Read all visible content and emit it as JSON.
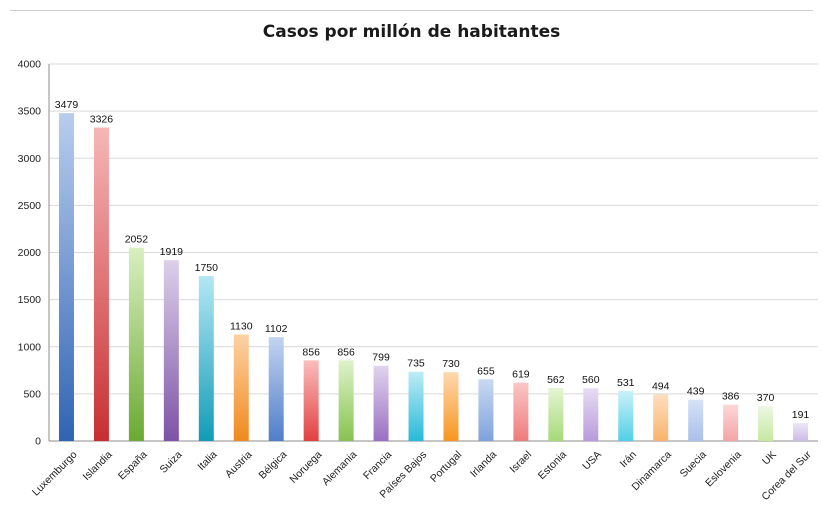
{
  "chart_data": {
    "type": "bar",
    "title": "Casos por millón de habitantes",
    "xlabel": "",
    "ylabel": "",
    "ylim": [
      0,
      4000
    ],
    "yticks": [
      0,
      500,
      1000,
      1500,
      2000,
      2500,
      3000,
      3500,
      4000
    ],
    "grid": true,
    "legend": "none",
    "categories": [
      "Luxemburgo",
      "Islandia",
      "España",
      "Suiza",
      "Italia",
      "Austria",
      "Bélgica",
      "Noruega",
      "Alemania",
      "Francia",
      "Países Bajos",
      "Portugal",
      "Irlanda",
      "Israel",
      "Estonia",
      "USA",
      "Irán",
      "Dinamarca",
      "Suecia",
      "Eslovenia",
      "UK",
      "Corea del Sur"
    ],
    "values": [
      3479,
      3326,
      2052,
      1919,
      1750,
      1130,
      1102,
      856,
      856,
      799,
      735,
      730,
      655,
      619,
      562,
      560,
      531,
      494,
      439,
      386,
      370,
      191
    ],
    "colors": [
      [
        "#b9cdee",
        "#2f64b4"
      ],
      [
        "#f6b7b7",
        "#c72f33"
      ],
      [
        "#d9efc0",
        "#6aaa33"
      ],
      [
        "#dcd0ea",
        "#7d53a6"
      ],
      [
        "#b3e7f3",
        "#129cb7"
      ],
      [
        "#fdd2a6",
        "#f08a1d"
      ],
      [
        "#c2d4f1",
        "#4f7ec8"
      ],
      [
        "#fbbdbd",
        "#e24040"
      ],
      [
        "#dff2cb",
        "#86c350"
      ],
      [
        "#e0d4ee",
        "#9a70c3"
      ],
      [
        "#bdecf6",
        "#28bad7"
      ],
      [
        "#fed8b0",
        "#f7961f"
      ],
      [
        "#c9d9f3",
        "#7fa2dc"
      ],
      [
        "#fbc6c6",
        "#ef7b7b"
      ],
      [
        "#e5f5d4",
        "#a6d977"
      ],
      [
        "#e6ddf2",
        "#b89ada"
      ],
      [
        "#c9f1f9",
        "#53cfe6"
      ],
      [
        "#fedec0",
        "#f8b36b"
      ],
      [
        "#d6e2f6",
        "#a9c0e9"
      ],
      [
        "#fdd7d7",
        "#f3a4a4"
      ],
      [
        "#edf8e1",
        "#c6e8a2"
      ],
      [
        "#ece6f6",
        "#cdbbe8"
      ]
    ]
  }
}
